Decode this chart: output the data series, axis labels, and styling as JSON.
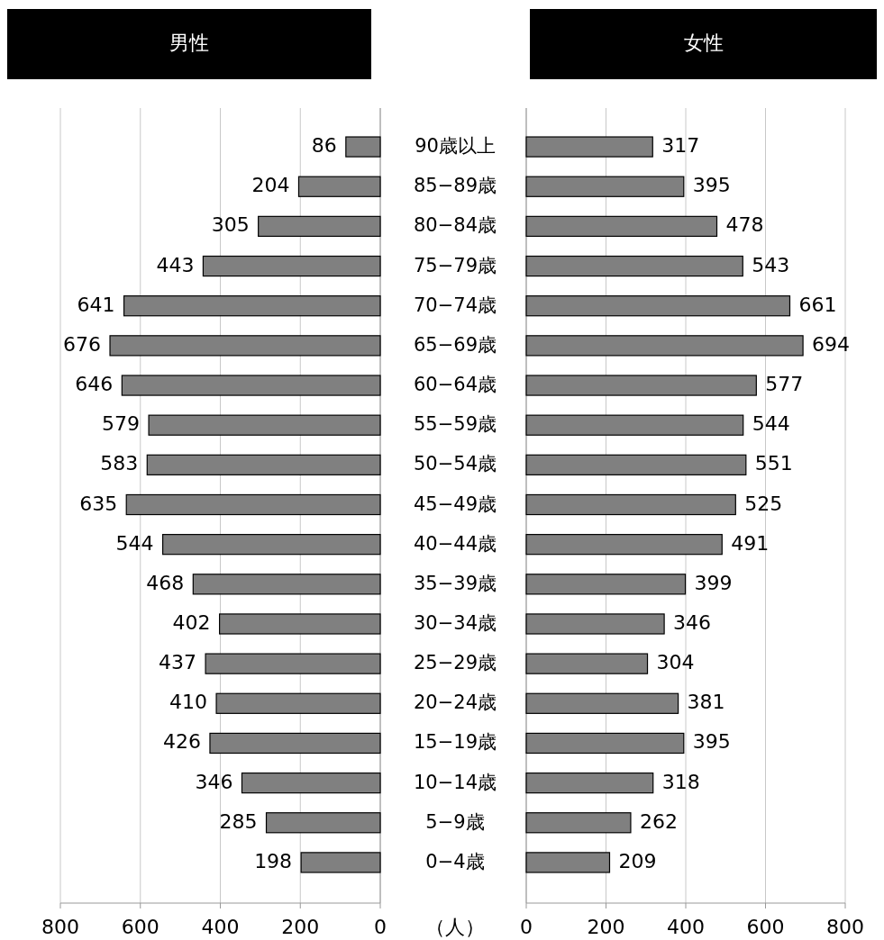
{
  "chart_data": [
    {
      "type": "bar",
      "orientation": "horizontal",
      "title": "男性",
      "xlabel": "（人）",
      "categories": [
        "90歳以上",
        "85−89歳",
        "80−84歳",
        "75−79歳",
        "70−74歳",
        "65−69歳",
        "60−64歳",
        "55−59歳",
        "50−54歳",
        "45−49歳",
        "40−44歳",
        "35−39歳",
        "30−34歳",
        "25−29歳",
        "20−24歳",
        "15−19歳",
        "10−14歳",
        "5−9歳",
        "0−4歳"
      ],
      "values": [
        86,
        204,
        305,
        443,
        641,
        676,
        646,
        579,
        583,
        635,
        544,
        468,
        402,
        437,
        410,
        426,
        346,
        285,
        198
      ],
      "color": "#808080",
      "xlim": [
        800,
        0
      ],
      "xticks": [
        800,
        600,
        400,
        200,
        0
      ],
      "grid": "x",
      "data_labels": true
    },
    {
      "type": "bar",
      "orientation": "horizontal",
      "title": "女性",
      "categories": [
        "90歳以上",
        "85−89歳",
        "80−84歳",
        "75−79歳",
        "70−74歳",
        "65−69歳",
        "60−64歳",
        "55−59歳",
        "50−54歳",
        "45−49歳",
        "40−44歳",
        "35−39歳",
        "30−34歳",
        "25−29歳",
        "20−24歳",
        "15−19歳",
        "10−14歳",
        "5−9歳",
        "0−4歳"
      ],
      "values": [
        317,
        395,
        478,
        543,
        661,
        694,
        577,
        544,
        551,
        525,
        491,
        399,
        346,
        304,
        381,
        395,
        318,
        262,
        209
      ],
      "color": "#808080",
      "xlim": [
        0,
        800
      ],
      "xticks": [
        0,
        200,
        400,
        600,
        800
      ],
      "grid": "x",
      "data_labels": true,
      "tick_labels": "x"
    }
  ]
}
